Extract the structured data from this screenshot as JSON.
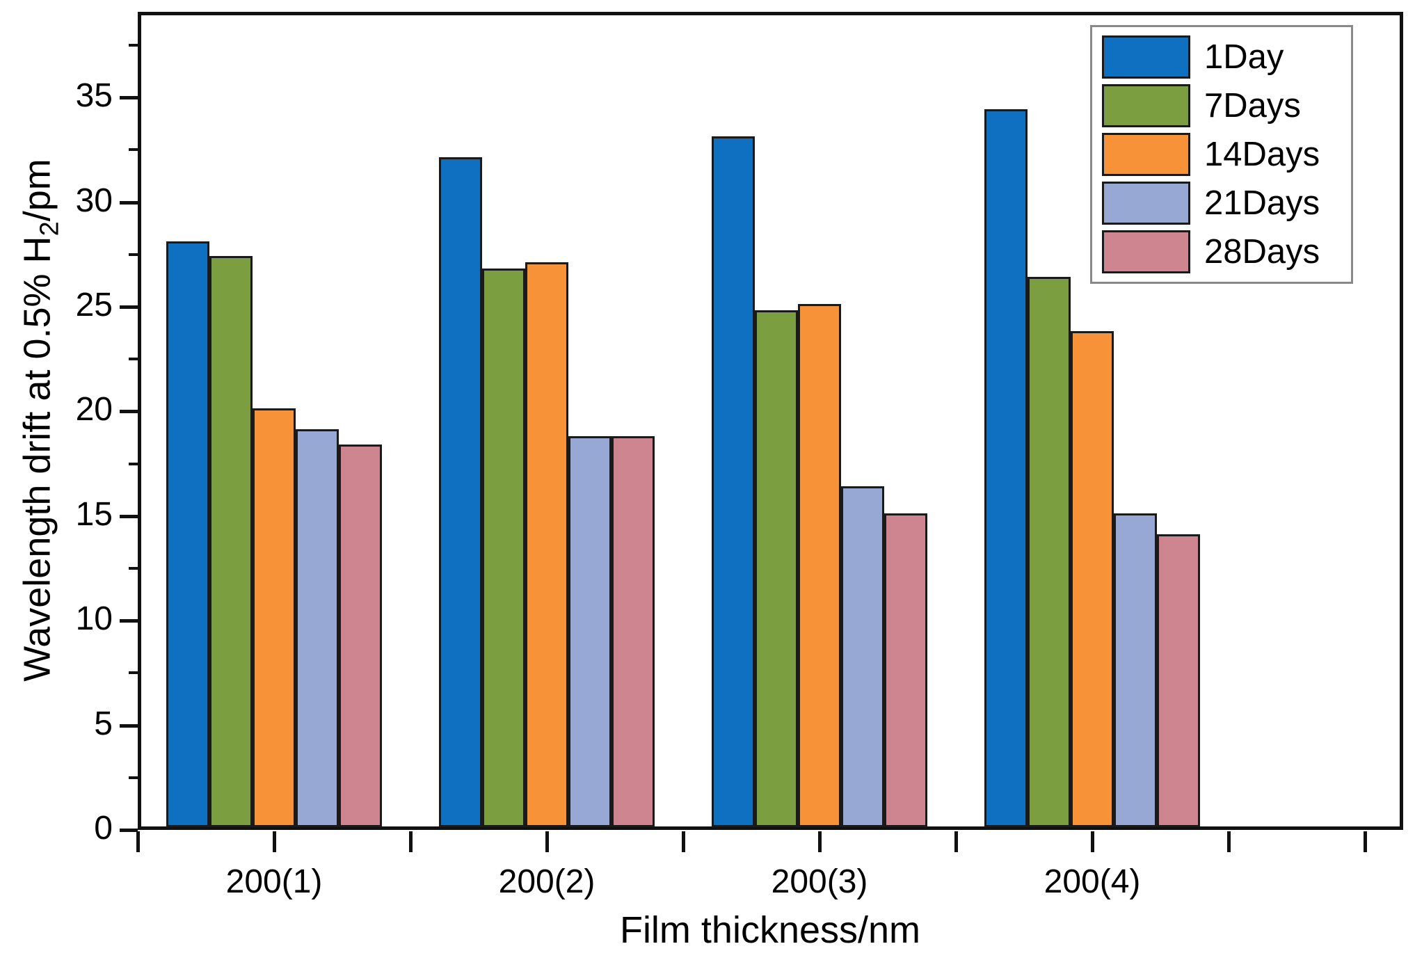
{
  "axes": {
    "x_title": "Film thickness/nm",
    "y_title_prefix": "Wavelength drift at 0.5% H",
    "y_title_sub": "2",
    "y_title_suffix": "/pm"
  },
  "legend": {
    "entries": [
      {
        "label": "1Day",
        "color": "#0f6fc0"
      },
      {
        "label": "7Days",
        "color": "#7b9e41"
      },
      {
        "label": "14Days",
        "color": "#f79239"
      },
      {
        "label": "21Days",
        "color": "#97a8d4"
      },
      {
        "label": "28Days",
        "color": "#cf8590"
      }
    ]
  },
  "chart_data": {
    "type": "bar",
    "title": "",
    "xlabel": "Film thickness/nm",
    "ylabel": "Wavelength drift at 0.5% H2/pm",
    "categories": [
      "200(1)",
      "200(2)",
      "200(3)",
      "200(4)"
    ],
    "series": [
      {
        "name": "1Day",
        "color": "#0f6fc0",
        "values": [
          28.0,
          32.0,
          33.0,
          34.3
        ]
      },
      {
        "name": "7Days",
        "color": "#7b9e41",
        "values": [
          27.3,
          26.7,
          24.7,
          26.3
        ]
      },
      {
        "name": "14Days",
        "color": "#f79239",
        "values": [
          20.0,
          27.0,
          25.0,
          23.7
        ]
      },
      {
        "name": "21Days",
        "color": "#97a8d4",
        "values": [
          19.0,
          18.7,
          16.3,
          15.0
        ]
      },
      {
        "name": "28Days",
        "color": "#cf8590",
        "values": [
          18.3,
          18.7,
          15.0,
          14.0
        ]
      }
    ],
    "ylim": [
      0,
      39
    ],
    "y_major_step": 5,
    "y_minor_step": 2.5,
    "y_major_ticks": [
      0,
      5,
      10,
      15,
      20,
      25,
      30,
      35
    ],
    "grid": false,
    "legend_position": "top-right",
    "bar_edge_color": "#1a1a1a",
    "background": "#ffffff"
  }
}
